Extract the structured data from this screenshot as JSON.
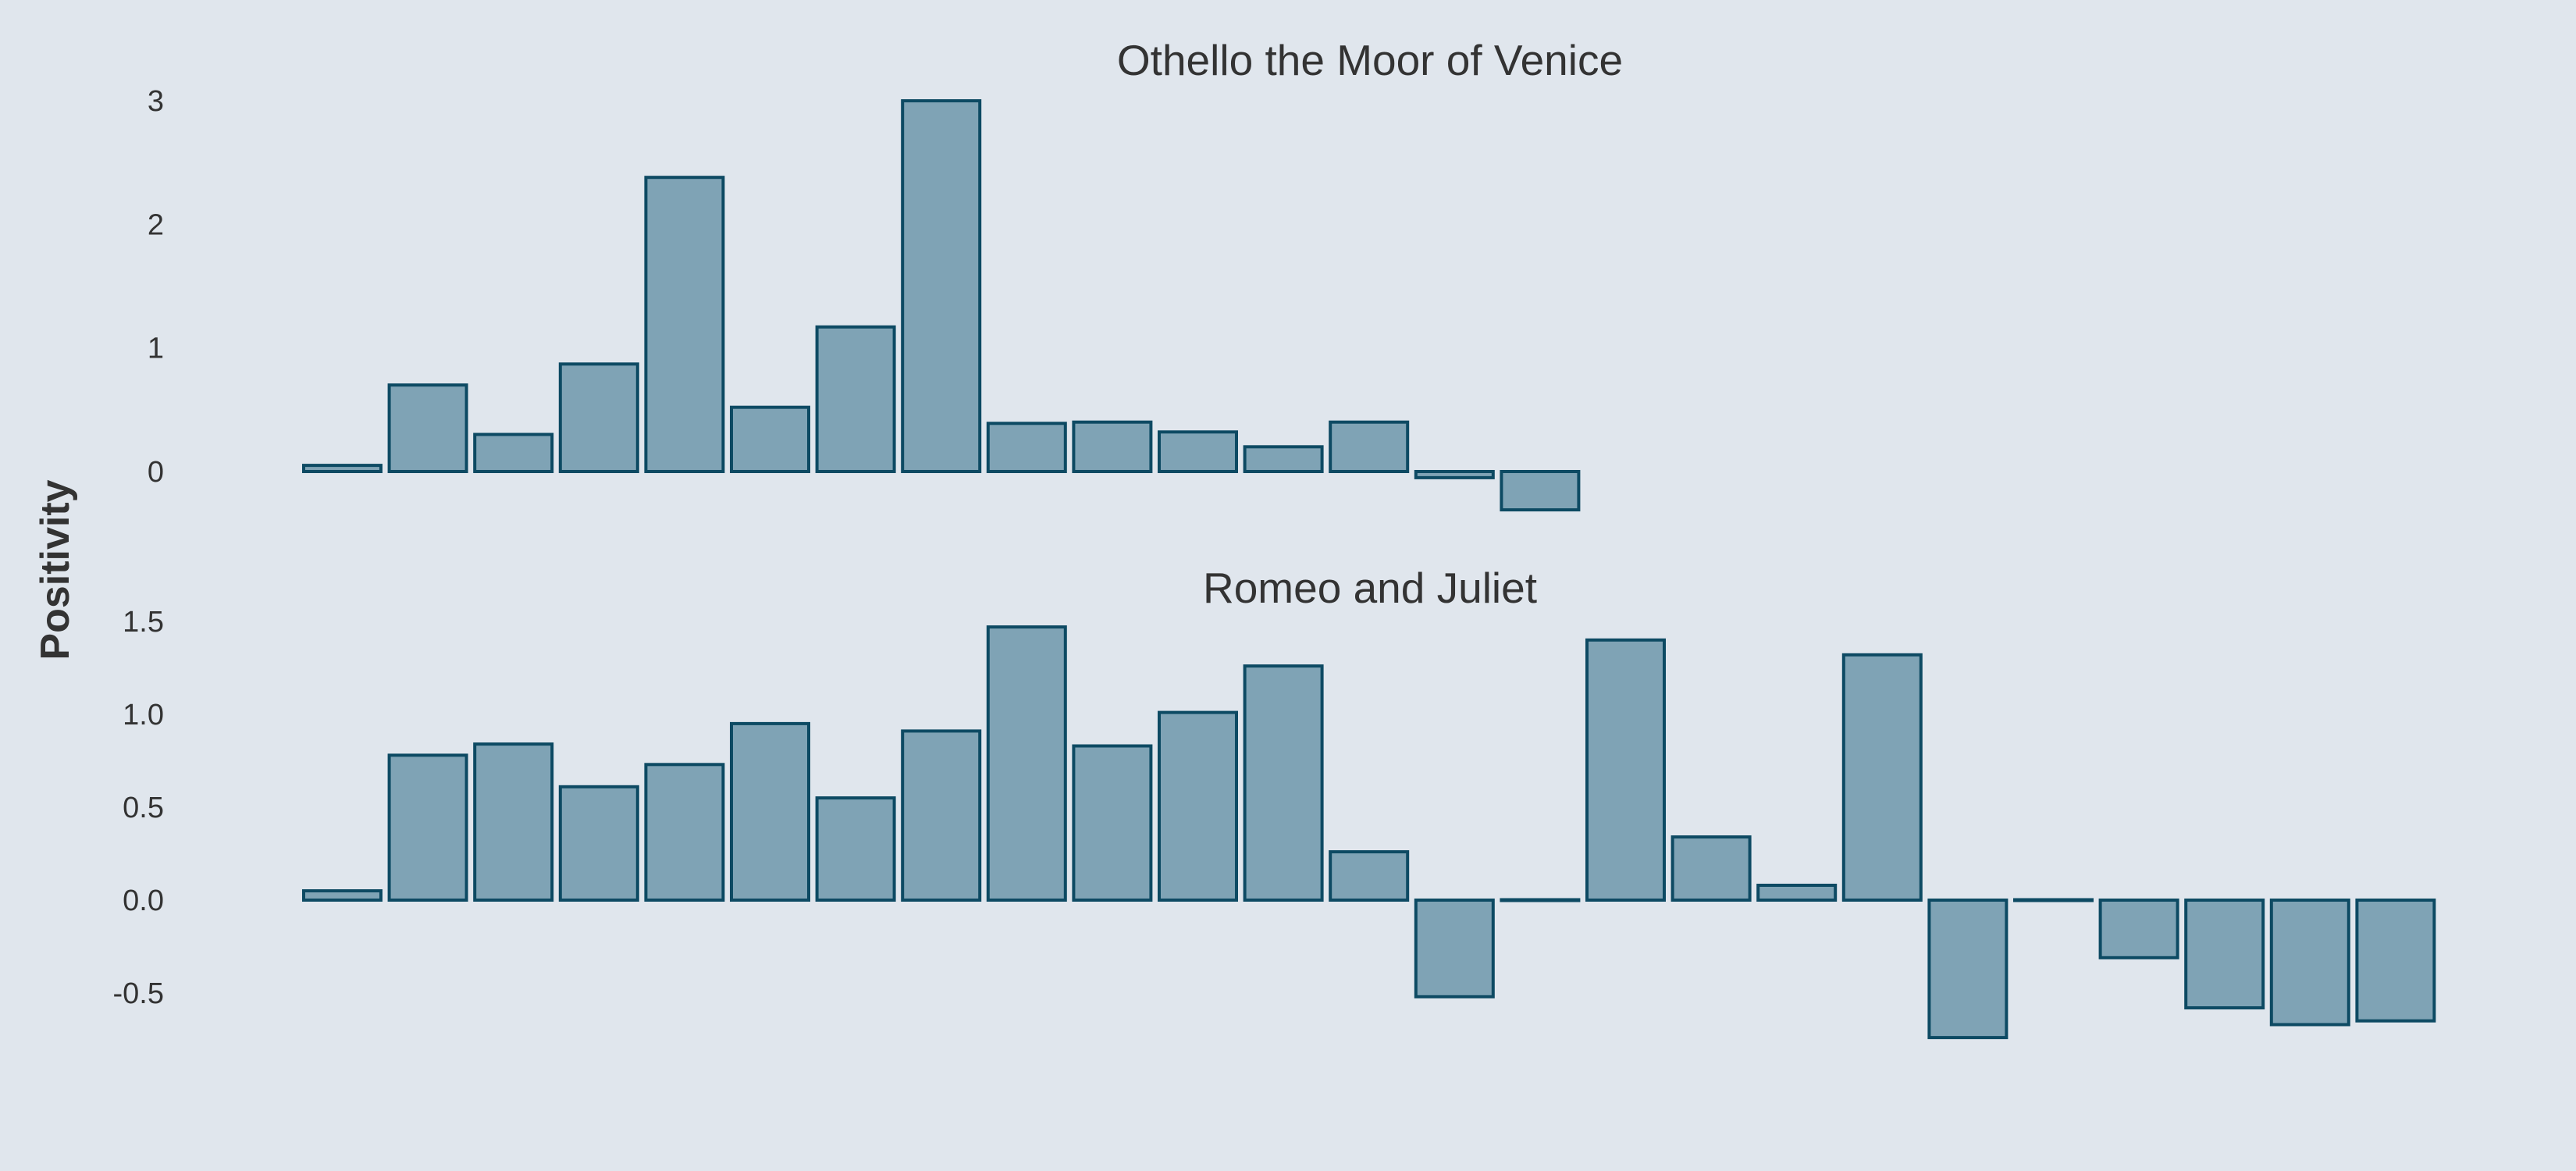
{
  "figure": {
    "ylabel": "Positivity",
    "background_color": "#e0e6ed",
    "bar_fill": "#7fa3b5",
    "bar_stroke": "#0d4a63"
  },
  "chart_data": [
    {
      "type": "bar",
      "title": "Othello the Moor of Venice",
      "xlabel": "",
      "ylabel": "Positivity",
      "grid": false,
      "ylim": [
        -0.3,
        3.0
      ],
      "yticks": [
        0,
        1,
        2,
        3
      ],
      "ytick_labels": [
        "0",
        "1",
        "2",
        "3"
      ],
      "values": [
        0.05,
        0.7,
        0.3,
        0.87,
        2.38,
        0.52,
        1.17,
        3.0,
        0.39,
        0.4,
        0.32,
        0.2,
        0.4,
        -0.05,
        -0.31
      ]
    },
    {
      "type": "bar",
      "title": "Romeo and Juliet",
      "xlabel": "",
      "ylabel": "Positivity",
      "grid": false,
      "ylim": [
        -0.75,
        1.5
      ],
      "yticks": [
        -0.5,
        0.0,
        0.5,
        1.0,
        1.5
      ],
      "ytick_labels": [
        "-0.5",
        "0.0",
        "0.5",
        "1.0",
        "1.5"
      ],
      "values": [
        0.05,
        0.78,
        0.84,
        0.61,
        0.73,
        0.95,
        0.55,
        0.91,
        1.47,
        0.83,
        1.01,
        1.26,
        0.26,
        -0.52,
        0.0,
        1.4,
        0.34,
        0.08,
        1.32,
        -0.74,
        0.0,
        -0.31,
        -0.58,
        -0.67,
        -0.65
      ]
    }
  ]
}
